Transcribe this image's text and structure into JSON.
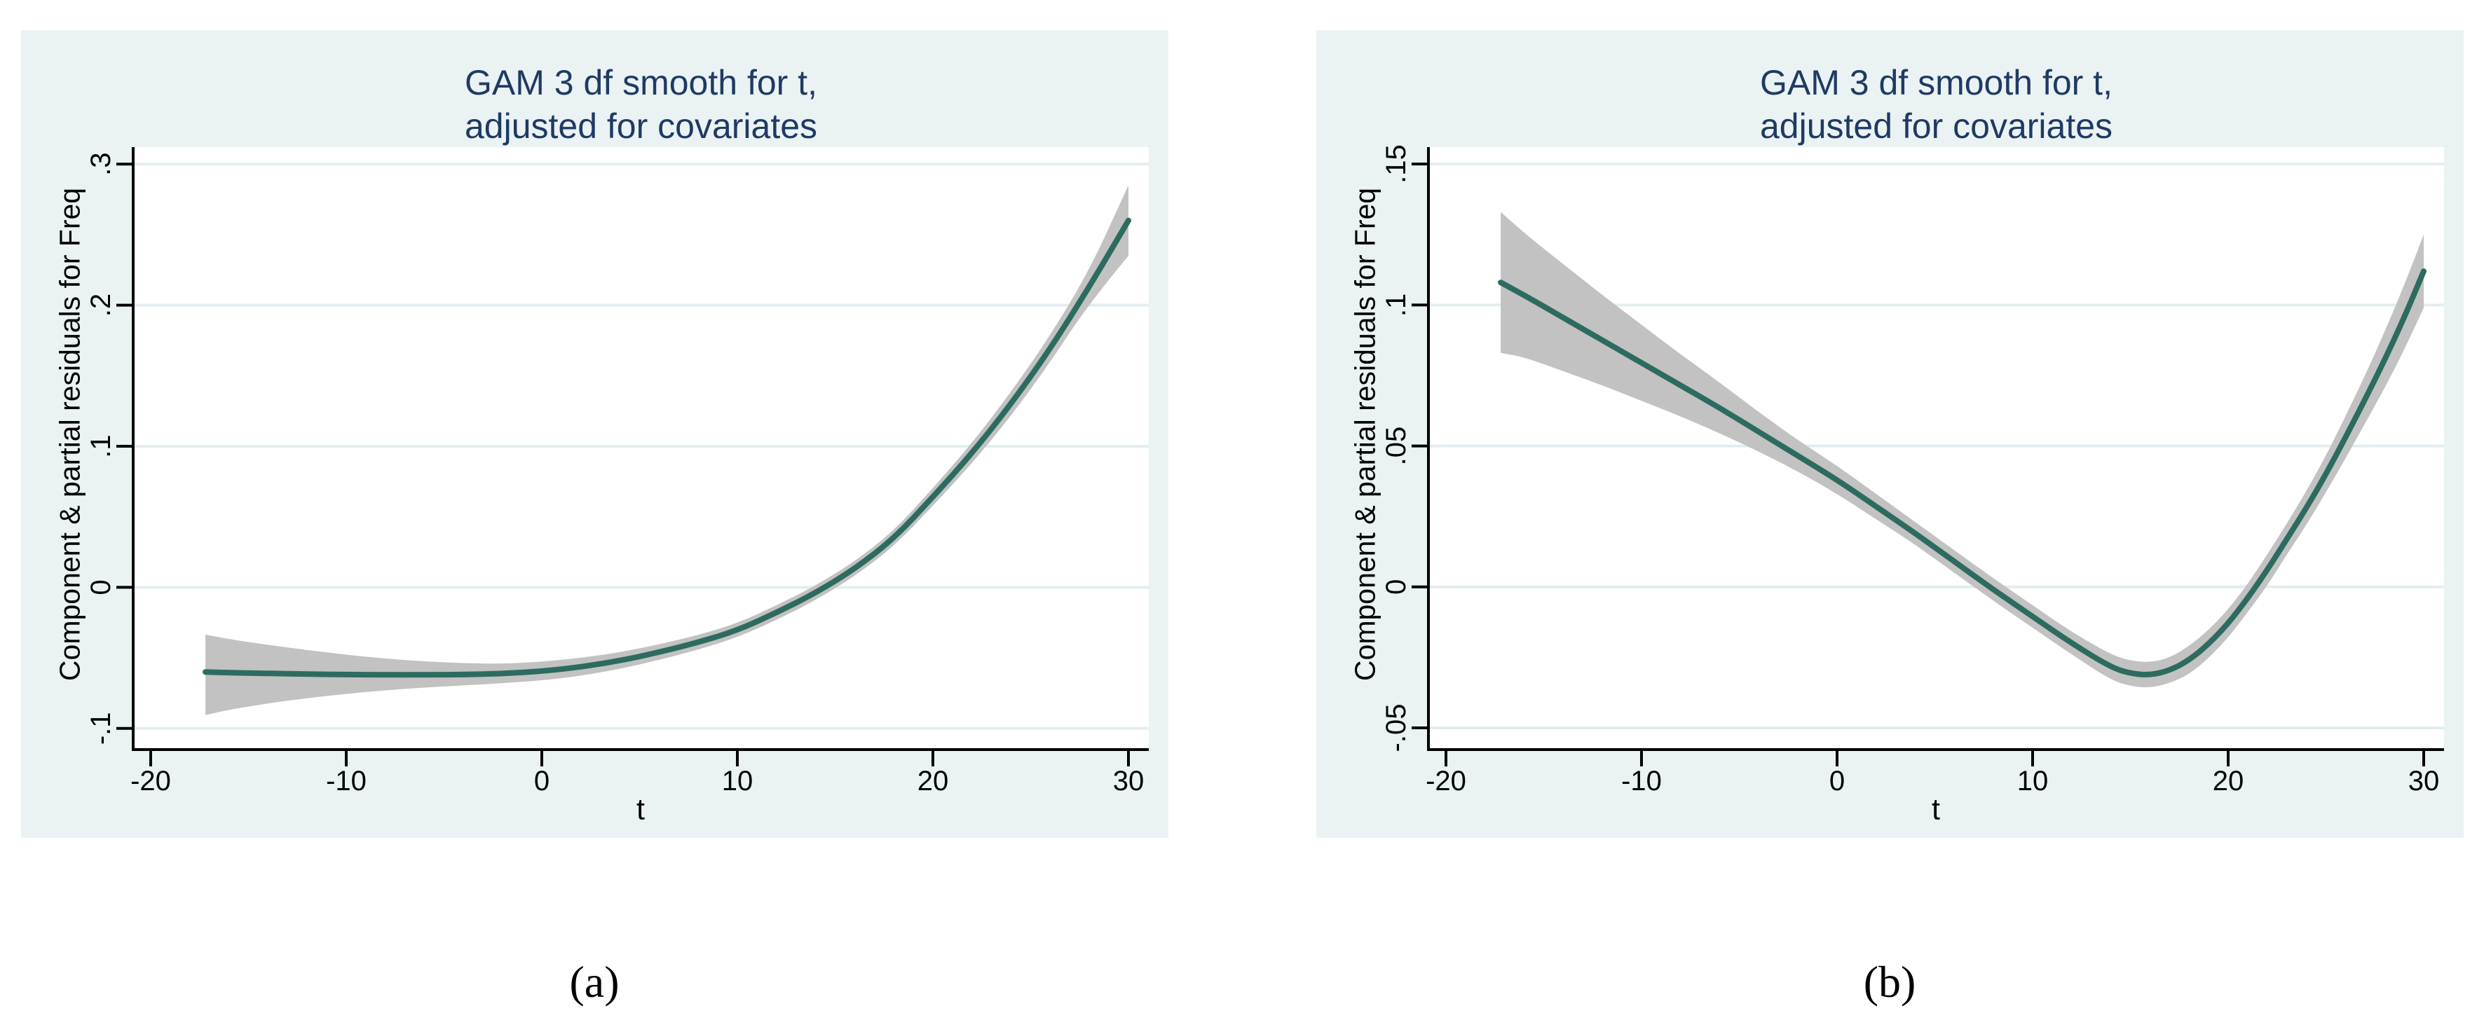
{
  "figure": {
    "kind": "two-panel statistical figure (Stata-style GAM partial residual smooths)"
  },
  "colors": {
    "page_background": "#ffffff",
    "panel_background": "#eaf2f3",
    "plot_background": "#ffffff",
    "grid": "#e3edf0",
    "axis": "#000000",
    "title_text": "#1f3a63",
    "tick_text": "#000000",
    "smooth_line": "#2d6b60",
    "ci_band": "#c2c2c2",
    "caption_text": "#000000"
  },
  "chart_data": [
    {
      "id": "a",
      "type": "line",
      "caption": "(a)",
      "title_lines": [
        "GAM 3 df smooth for t,",
        "adjusted for covariates"
      ],
      "xlabel": "t",
      "ylabel": "Component & partial residuals for Freq",
      "grid": true,
      "legend_position": "none",
      "x_ticks": [
        -20,
        -10,
        0,
        10,
        20,
        30
      ],
      "x_tick_labels": [
        "-20",
        "-10",
        "0",
        "10",
        "20",
        "30"
      ],
      "y_ticks": [
        0.3,
        0.2,
        0.1,
        0,
        -0.1
      ],
      "y_tick_labels": [
        ".3",
        ".2",
        ".1",
        "0",
        "-.1"
      ],
      "xlim": [
        -20.9,
        31.0
      ],
      "ylim": [
        -0.115,
        0.312
      ],
      "x": [
        -17.2,
        -16,
        -14,
        -12,
        -10,
        -8,
        -6,
        -4,
        -2,
        0,
        2,
        4,
        6,
        8,
        10,
        12,
        14,
        16,
        18,
        20,
        22,
        24,
        26,
        28,
        30
      ],
      "series": [
        {
          "name": "GAM 3 df smooth",
          "values": [
            -0.06,
            -0.0605,
            -0.061,
            -0.0615,
            -0.0618,
            -0.062,
            -0.062,
            -0.0618,
            -0.0612,
            -0.0595,
            -0.0565,
            -0.052,
            -0.046,
            -0.039,
            -0.0305,
            -0.018,
            -0.004,
            0.013,
            0.0345,
            0.064,
            0.095,
            0.13,
            0.169,
            0.213,
            0.26
          ]
        },
        {
          "name": "CI lower",
          "values": [
            -0.0905,
            -0.0868,
            -0.0822,
            -0.0785,
            -0.0755,
            -0.073,
            -0.071,
            -0.0695,
            -0.068,
            -0.066,
            -0.0628,
            -0.0578,
            -0.0515,
            -0.0442,
            -0.0355,
            -0.0232,
            -0.0092,
            0.0078,
            0.029,
            0.0578,
            0.0878,
            0.1215,
            0.1595,
            0.2015,
            0.235
          ]
        },
        {
          "name": "CI upper",
          "values": [
            -0.0335,
            -0.0368,
            -0.0408,
            -0.0445,
            -0.0478,
            -0.0505,
            -0.0525,
            -0.0538,
            -0.0542,
            -0.0528,
            -0.05,
            -0.046,
            -0.0405,
            -0.0338,
            -0.0255,
            -0.0128,
            0.0012,
            0.0182,
            0.04,
            0.0702,
            0.1022,
            0.1385,
            0.1785,
            0.2245,
            0.285
          ]
        }
      ]
    },
    {
      "id": "b",
      "type": "line",
      "caption": "(b)",
      "title_lines": [
        "GAM 3 df smooth for t,",
        "adjusted for covariates"
      ],
      "xlabel": "t",
      "ylabel": "Component & partial residuals for Freq",
      "grid": true,
      "legend_position": "none",
      "x_ticks": [
        -20,
        -10,
        0,
        10,
        20,
        30
      ],
      "x_tick_labels": [
        "-20",
        "-10",
        "0",
        "10",
        "20",
        "30"
      ],
      "y_ticks": [
        0.15,
        0.1,
        0.05,
        0,
        -0.05
      ],
      "y_tick_labels": [
        ".15",
        ".1",
        ".05",
        "0",
        "-.05"
      ],
      "xlim": [
        -20.9,
        31.0
      ],
      "ylim": [
        -0.0577,
        0.156
      ],
      "x": [
        -17.2,
        -16,
        -14,
        -12,
        -10,
        -8,
        -6,
        -4,
        -2,
        0,
        2,
        4,
        6,
        8,
        10,
        12,
        14,
        15,
        16,
        17,
        18,
        19,
        20,
        21,
        22,
        23,
        24,
        25,
        26,
        27,
        28,
        29,
        30
      ],
      "series": [
        {
          "name": "GAM 3 df smooth",
          "values": [
            0.108,
            0.1035,
            0.0955,
            0.0875,
            0.0795,
            0.0715,
            0.0635,
            0.055,
            0.0465,
            0.038,
            0.0285,
            0.019,
            0.009,
            -0.001,
            -0.0105,
            -0.02,
            -0.0285,
            -0.0307,
            -0.0313,
            -0.0297,
            -0.026,
            -0.0203,
            -0.013,
            -0.004,
            0.006,
            0.017,
            0.028,
            0.04,
            0.053,
            0.0665,
            0.0805,
            0.0955,
            0.112
          ]
        },
        {
          "name": "CI lower",
          "values": [
            0.083,
            0.0815,
            0.0765,
            0.0715,
            0.066,
            0.0605,
            0.0545,
            0.048,
            0.041,
            0.033,
            0.024,
            0.015,
            0.005,
            -0.005,
            -0.0145,
            -0.024,
            -0.033,
            -0.0352,
            -0.0358,
            -0.0342,
            -0.031,
            -0.0253,
            -0.018,
            -0.009,
            0.0005,
            0.0115,
            0.022,
            0.0335,
            0.0455,
            0.058,
            0.0705,
            0.084,
            0.099
          ]
        },
        {
          "name": "CI upper",
          "values": [
            0.133,
            0.1255,
            0.1145,
            0.1035,
            0.093,
            0.0825,
            0.0725,
            0.062,
            0.052,
            0.043,
            0.033,
            0.023,
            0.013,
            0.003,
            -0.0065,
            -0.016,
            -0.024,
            -0.0262,
            -0.0268,
            -0.0252,
            -0.021,
            -0.0153,
            -0.008,
            0.001,
            0.0115,
            0.0225,
            0.034,
            0.0465,
            0.0605,
            0.075,
            0.0905,
            0.107,
            0.125
          ]
        }
      ]
    }
  ]
}
